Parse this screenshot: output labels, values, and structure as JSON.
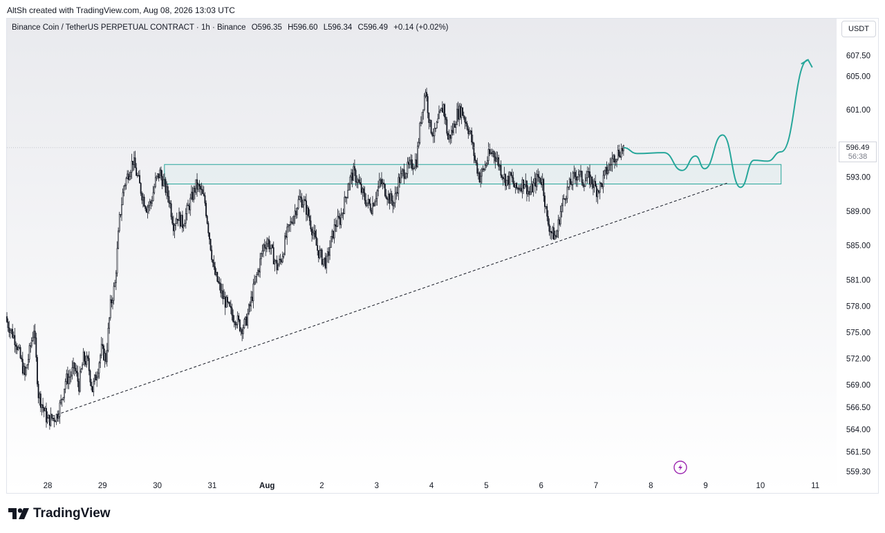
{
  "credit": "AltSh created with TradingView.com, Aug 08, 2026 13:03 UTC",
  "symbol": {
    "title": "Binance Coin / TetherUS PERPETUAL CONTRACT · 1h · Binance",
    "open": "O596.35",
    "high": "H596.60",
    "low": "L596.34",
    "close": "C596.49",
    "change": "+0.14 (+0.02%)"
  },
  "currency": "USDT",
  "last_price": {
    "value": "596.49",
    "countdown": "56:38"
  },
  "brand": "TradingView",
  "colors": {
    "candle": "#131722",
    "zone": "#26a69a",
    "projection": "#26a69a",
    "trendline": "#131722"
  },
  "chart_data": {
    "type": "candlestick",
    "y_scale": "log",
    "y_ticks": [
      "607.50",
      "605.00",
      "601.00",
      "593.00",
      "589.00",
      "585.00",
      "581.00",
      "578.00",
      "575.00",
      "572.00",
      "569.00",
      "566.50",
      "564.00",
      "561.50",
      "559.30"
    ],
    "x_ticks": [
      "28",
      "29",
      "30",
      "31",
      "Aug",
      "2",
      "3",
      "4",
      "5",
      "6",
      "7",
      "8",
      "9",
      "10",
      "11"
    ],
    "close_path": [
      [
        0,
        576.2
      ],
      [
        2,
        574.0
      ],
      [
        4,
        570.0
      ],
      [
        6,
        575.5
      ],
      [
        7,
        568.0
      ],
      [
        8,
        566.5
      ],
      [
        9,
        565.0
      ],
      [
        11,
        565.5
      ],
      [
        12,
        567.0
      ],
      [
        13,
        569.5
      ],
      [
        14,
        570.0
      ],
      [
        15,
        571.0
      ],
      [
        16,
        569.0
      ],
      [
        17,
        572.0
      ],
      [
        18,
        571.5
      ],
      [
        19,
        568.5
      ],
      [
        20,
        570.5
      ],
      [
        21,
        573.0
      ],
      [
        22,
        572.0
      ],
      [
        23,
        578.0
      ],
      [
        24,
        580.5
      ],
      [
        25,
        588.0
      ],
      [
        26,
        592.0
      ],
      [
        27,
        593.5
      ],
      [
        28,
        595.0
      ],
      [
        29,
        593.0
      ],
      [
        30,
        591.0
      ],
      [
        31,
        589.5
      ],
      [
        32,
        590.0
      ],
      [
        33,
        592.5
      ],
      [
        34,
        593.5
      ],
      [
        35,
        592.0
      ],
      [
        36,
        590.5
      ],
      [
        37,
        587.5
      ],
      [
        38,
        588.5
      ],
      [
        39,
        587.5
      ],
      [
        40,
        589.0
      ],
      [
        41,
        590.5
      ],
      [
        42,
        592.0
      ],
      [
        43,
        591.5
      ],
      [
        44,
        590.0
      ],
      [
        45,
        586.0
      ],
      [
        46,
        582.0
      ],
      [
        47,
        580.5
      ],
      [
        48,
        579.0
      ],
      [
        49,
        578.0
      ],
      [
        50,
        577.0
      ],
      [
        51,
        576.5
      ],
      [
        52,
        575.5
      ],
      [
        53,
        576.0
      ],
      [
        54,
        578.0
      ],
      [
        55,
        580.5
      ],
      [
        56,
        582.5
      ],
      [
        57,
        585.0
      ],
      [
        58,
        585.5
      ],
      [
        59,
        584.0
      ],
      [
        60,
        582.5
      ],
      [
        61,
        583.5
      ],
      [
        62,
        586.0
      ],
      [
        63,
        587.5
      ],
      [
        64,
        589.0
      ],
      [
        65,
        590.5
      ],
      [
        66,
        590.0
      ],
      [
        67,
        588.5
      ],
      [
        68,
        586.5
      ],
      [
        69,
        584.5
      ],
      [
        70,
        583.5
      ],
      [
        71,
        583.0
      ],
      [
        72,
        585.5
      ],
      [
        73,
        587.5
      ],
      [
        74,
        588.0
      ],
      [
        75,
        590.0
      ],
      [
        76,
        592.5
      ],
      [
        77,
        593.5
      ],
      [
        78,
        592.5
      ],
      [
        79,
        591.0
      ],
      [
        80,
        590.0
      ],
      [
        81,
        589.5
      ],
      [
        82,
        591.0
      ],
      [
        83,
        592.5
      ],
      [
        84,
        591.5
      ],
      [
        85,
        590.5
      ],
      [
        86,
        590.0
      ],
      [
        87,
        592.5
      ],
      [
        88,
        593.5
      ],
      [
        89,
        594.0
      ],
      [
        90,
        594.5
      ],
      [
        91,
        595.0
      ],
      [
        92,
        600.0
      ],
      [
        93,
        603.5
      ],
      [
        94,
        599.0
      ],
      [
        95,
        598.0
      ],
      [
        96,
        600.0
      ],
      [
        97,
        601.5
      ],
      [
        98,
        597.5
      ],
      [
        99,
        598.5
      ],
      [
        100,
        600.5
      ],
      [
        101,
        601.0
      ],
      [
        102,
        599.5
      ],
      [
        103,
        598.0
      ],
      [
        104,
        595.0
      ],
      [
        105,
        593.0
      ],
      [
        106,
        594.0
      ],
      [
        107,
        595.5
      ],
      [
        108,
        596.0
      ],
      [
        109,
        595.0
      ],
      [
        110,
        593.5
      ],
      [
        111,
        592.5
      ],
      [
        112,
        593.0
      ],
      [
        113,
        591.5
      ],
      [
        114,
        592.0
      ],
      [
        115,
        592.5
      ],
      [
        116,
        591.0
      ],
      [
        117,
        592.0
      ],
      [
        118,
        593.0
      ],
      [
        119,
        592.5
      ],
      [
        120,
        588.0
      ],
      [
        121,
        586.5
      ],
      [
        122,
        586.0
      ],
      [
        123,
        589.0
      ],
      [
        124,
        591.0
      ],
      [
        125,
        592.0
      ],
      [
        126,
        593.0
      ],
      [
        127,
        593.5
      ],
      [
        128,
        592.5
      ],
      [
        129,
        593.0
      ],
      [
        130,
        592.5
      ],
      [
        131,
        591.5
      ],
      [
        132,
        592.0
      ],
      [
        133,
        593.5
      ],
      [
        134,
        594.5
      ],
      [
        135,
        595.5
      ],
      [
        136,
        596.0
      ],
      [
        137,
        596.49
      ]
    ],
    "zone": {
      "from_bar": 35,
      "to_bar": 172,
      "low": 592.2,
      "high": 594.5
    },
    "trendline": {
      "from": [
        9,
        565.3
      ],
      "to": [
        160,
        592.3
      ]
    },
    "projection": [
      [
        137,
        596.49
      ],
      [
        140,
        595.8
      ],
      [
        146,
        595.9
      ],
      [
        150,
        593.8
      ],
      [
        153,
        595.5
      ],
      [
        155,
        594.0
      ],
      [
        159,
        598.0
      ],
      [
        163,
        591.8
      ],
      [
        166,
        595.0
      ],
      [
        169,
        594.9
      ],
      [
        172,
        596.0
      ],
      [
        178,
        607.0
      ]
    ]
  }
}
